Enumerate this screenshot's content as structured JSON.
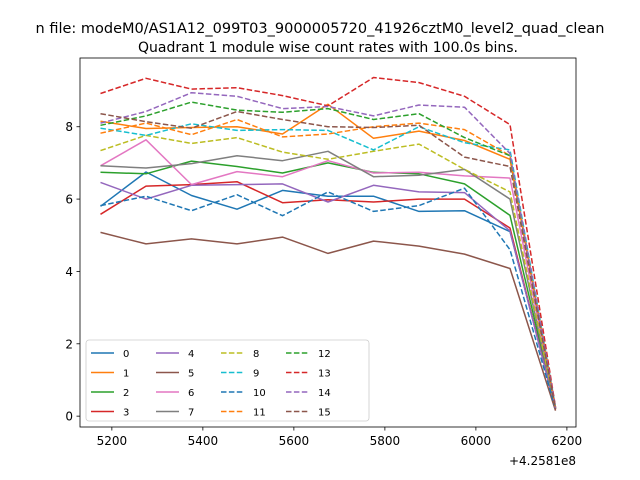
{
  "chart_data": {
    "type": "line",
    "suptitle": "n file: modeM0/AS1A12_099T03_9000005720_41926cztM0_level2_quad_clean",
    "title": "Quadrant 1 module wise count rates with 100.0s bins.",
    "xlabel": "",
    "ylabel": "",
    "x_offset_label": "+4.2581e8",
    "x": [
      5175,
      5275,
      5375,
      5475,
      5575,
      5675,
      5775,
      5875,
      5975,
      6075,
      6175
    ],
    "xlim": [
      5130,
      6220
    ],
    "ylim": [
      -0.3,
      9.9
    ],
    "xticks": [
      5200,
      5400,
      5600,
      5800,
      6000,
      6200
    ],
    "xtick_labels": [
      "5200",
      "5400",
      "5600",
      "5800",
      "6000",
      "6200"
    ],
    "yticks": [
      0,
      2,
      4,
      6,
      8
    ],
    "ytick_labels": [
      "0",
      "2",
      "4",
      "6",
      "8"
    ],
    "legend_position": "lower-left",
    "series": [
      {
        "name": "0",
        "color": "#1f77b4",
        "style": "solid",
        "values": [
          5.8,
          6.75,
          6.1,
          5.72,
          6.24,
          6.08,
          6.08,
          5.66,
          5.68,
          5.1,
          0.25
        ]
      },
      {
        "name": "1",
        "color": "#ff7f0e",
        "style": "solid",
        "values": [
          8.15,
          7.95,
          7.98,
          8.0,
          7.8,
          8.62,
          7.68,
          7.88,
          7.62,
          7.1,
          0.2
        ]
      },
      {
        "name": "2",
        "color": "#2ca02c",
        "style": "solid",
        "values": [
          6.74,
          6.7,
          7.05,
          6.9,
          6.72,
          7.0,
          6.74,
          6.7,
          6.42,
          5.55,
          0.22
        ]
      },
      {
        "name": "3",
        "color": "#d62728",
        "style": "solid",
        "values": [
          5.58,
          6.36,
          6.4,
          6.48,
          5.9,
          5.98,
          5.92,
          6.0,
          6.0,
          5.2,
          0.18
        ]
      },
      {
        "name": "4",
        "color": "#9467bd",
        "style": "solid",
        "values": [
          6.46,
          6.0,
          6.38,
          6.4,
          6.42,
          5.92,
          6.38,
          6.2,
          6.18,
          5.12,
          0.2
        ]
      },
      {
        "name": "5",
        "color": "#8c564b",
        "style": "solid",
        "values": [
          5.08,
          4.76,
          4.9,
          4.76,
          4.95,
          4.5,
          4.84,
          4.7,
          4.48,
          4.08,
          0.15
        ]
      },
      {
        "name": "6",
        "color": "#e377c2",
        "style": "solid",
        "values": [
          6.92,
          7.64,
          6.4,
          6.76,
          6.62,
          7.06,
          6.72,
          6.74,
          6.64,
          6.58,
          0.22
        ]
      },
      {
        "name": "7",
        "color": "#7f7f7f",
        "style": "solid",
        "values": [
          6.92,
          6.86,
          6.98,
          7.2,
          7.06,
          7.32,
          6.62,
          6.66,
          6.82,
          6.0,
          0.2
        ]
      },
      {
        "name": "8",
        "color": "#bcbd22",
        "style": "dashed",
        "values": [
          7.34,
          7.76,
          7.54,
          7.7,
          7.3,
          7.1,
          7.32,
          7.52,
          6.82,
          6.2,
          0.22
        ]
      },
      {
        "name": "9",
        "color": "#17becf",
        "style": "dashed",
        "values": [
          7.96,
          7.76,
          8.08,
          7.9,
          7.92,
          7.9,
          7.36,
          8.0,
          7.56,
          7.36,
          0.25
        ]
      },
      {
        "name": "10",
        "color": "#1f77b4",
        "style": "dashed",
        "values": [
          5.82,
          6.08,
          5.68,
          6.12,
          5.54,
          6.2,
          5.66,
          5.82,
          6.3,
          4.6,
          0.2
        ]
      },
      {
        "name": "11",
        "color": "#ff7f0e",
        "style": "dashed",
        "values": [
          7.82,
          8.1,
          7.78,
          8.2,
          7.72,
          7.8,
          8.0,
          8.1,
          7.92,
          7.2,
          0.22
        ]
      },
      {
        "name": "12",
        "color": "#2ca02c",
        "style": "dashed",
        "values": [
          8.04,
          8.3,
          8.68,
          8.46,
          8.4,
          8.5,
          8.2,
          8.36,
          7.7,
          7.2,
          0.22
        ]
      },
      {
        "name": "13",
        "color": "#d62728",
        "style": "dashed",
        "values": [
          8.92,
          9.34,
          9.04,
          9.08,
          8.86,
          8.58,
          9.36,
          9.22,
          8.84,
          8.06,
          0.25
        ]
      },
      {
        "name": "14",
        "color": "#9467bd",
        "style": "dashed",
        "values": [
          8.1,
          8.42,
          8.94,
          8.84,
          8.5,
          8.56,
          8.3,
          8.6,
          8.54,
          7.26,
          0.22
        ]
      },
      {
        "name": "15",
        "color": "#8c564b",
        "style": "dashed",
        "values": [
          8.36,
          8.14,
          7.96,
          8.42,
          8.2,
          8.0,
          7.98,
          8.04,
          7.16,
          6.9,
          0.2
        ]
      }
    ]
  }
}
